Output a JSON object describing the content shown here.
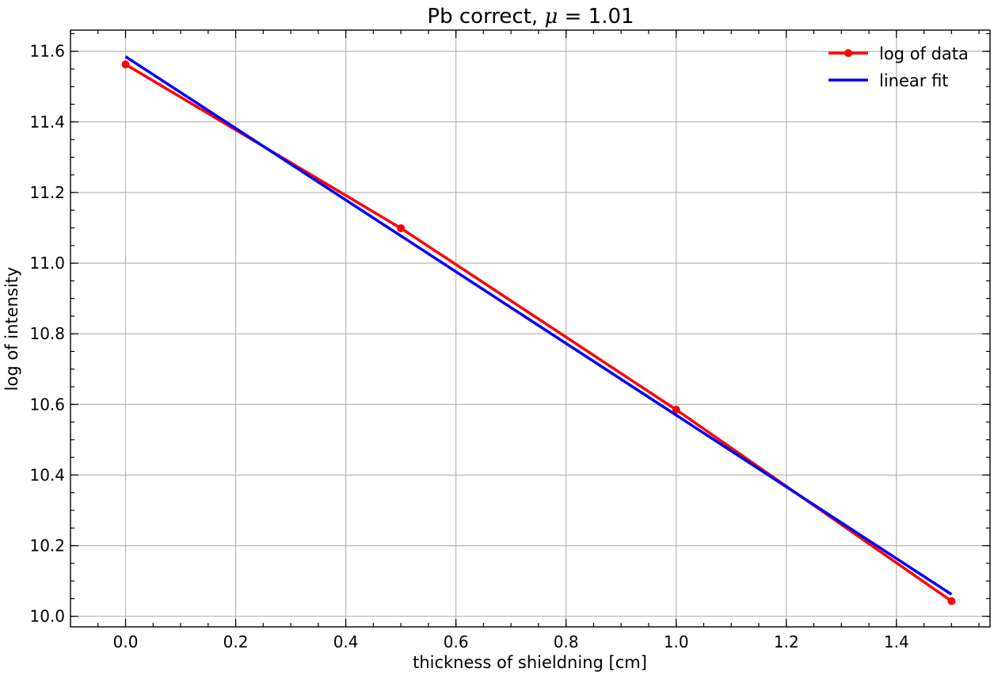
{
  "chart_data": {
    "type": "line",
    "title": "Pb correct, μ = 1.01",
    "title_prefix": "Pb correct, ",
    "title_symbol": "μ",
    "title_suffix": " = 1.01",
    "xlabel": "thickness of shieldning [cm]",
    "ylabel": "log of intensity",
    "xlim": [
      -0.1,
      1.57
    ],
    "ylim": [
      9.97,
      11.66
    ],
    "xticks": [
      0.0,
      0.2,
      0.4,
      0.6,
      0.8,
      1.0,
      1.2,
      1.4
    ],
    "xtick_labels": [
      "0.0",
      "0.2",
      "0.4",
      "0.6",
      "0.8",
      "1.0",
      "1.2",
      "1.4"
    ],
    "yticks": [
      10.0,
      10.2,
      10.4,
      10.6,
      10.8,
      11.0,
      11.2,
      11.4,
      11.6
    ],
    "ytick_labels": [
      "10.0",
      "10.2",
      "10.4",
      "10.6",
      "10.8",
      "11.0",
      "11.2",
      "11.4",
      "11.6"
    ],
    "grid": true,
    "legend_position": "top-right",
    "series": [
      {
        "name": "log of data",
        "color": "#ff0000",
        "marker": "circle",
        "x": [
          0.0,
          0.5,
          1.0,
          1.5
        ],
        "y": [
          11.563,
          11.099,
          10.585,
          10.043
        ]
      },
      {
        "name": "linear fit",
        "color": "#0000ff",
        "marker": "none",
        "x": [
          0.0,
          1.5
        ],
        "y": [
          11.585,
          10.062
        ]
      }
    ]
  }
}
